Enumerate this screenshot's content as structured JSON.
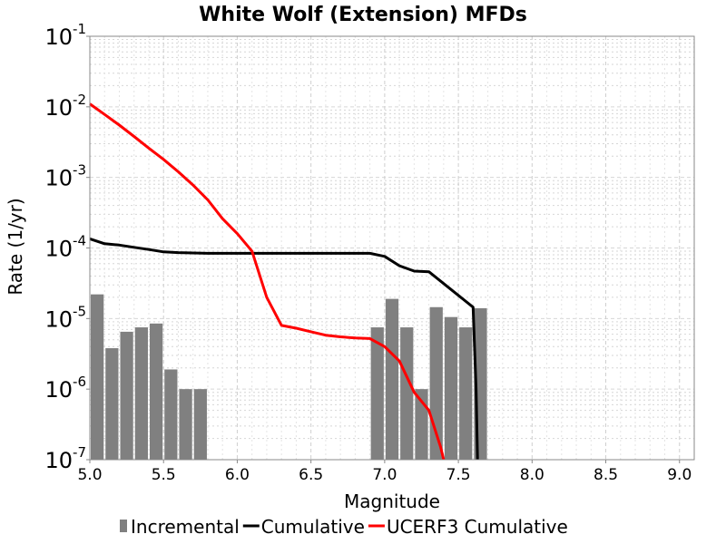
{
  "chart_data": {
    "type": "bar+line",
    "title": "White Wolf (Extension) MFDs",
    "xlabel": "Magnitude",
    "ylabel": "Rate (1/yr)",
    "xlim": [
      5.0,
      9.1
    ],
    "ylim": [
      1e-07,
      0.1
    ],
    "yscale": "log",
    "grid": true,
    "x_ticks": [
      "5.0",
      "5.5",
      "6.0",
      "6.5",
      "7.0",
      "7.5",
      "8.0",
      "8.5",
      "9.0"
    ],
    "y_ticks": [
      {
        "base": "10",
        "exp": "-1",
        "value": 0.1
      },
      {
        "base": "10",
        "exp": "-2",
        "value": 0.01
      },
      {
        "base": "10",
        "exp": "-3",
        "value": 0.001
      },
      {
        "base": "10",
        "exp": "-4",
        "value": 0.0001
      },
      {
        "base": "10",
        "exp": "-5",
        "value": 1e-05
      },
      {
        "base": "10",
        "exp": "-6",
        "value": 1e-06
      },
      {
        "base": "10",
        "exp": "-7",
        "value": 1e-07
      }
    ],
    "legend_position": "bottom",
    "series": [
      {
        "name": "Incremental",
        "type": "bar",
        "color": "#808080",
        "x": [
          5.05,
          5.15,
          5.25,
          5.35,
          5.45,
          5.55,
          5.65,
          5.75,
          6.95,
          7.05,
          7.15,
          7.25,
          7.35,
          7.45,
          7.55,
          7.65
        ],
        "y": [
          2.2e-05,
          3.8e-06,
          6.5e-06,
          7.5e-06,
          8.5e-06,
          1.9e-06,
          1e-06,
          1e-06,
          7.5e-06,
          1.9e-05,
          7.5e-06,
          1e-06,
          1.45e-05,
          1.05e-05,
          7.5e-06,
          1.4e-05
        ]
      },
      {
        "name": "Cumulative",
        "type": "line",
        "color": "#000000",
        "x": [
          5.0,
          5.1,
          5.2,
          5.3,
          5.4,
          5.5,
          5.6,
          5.7,
          5.8,
          5.9,
          6.0,
          6.5,
          6.9,
          7.0,
          7.1,
          7.2,
          7.3,
          7.6,
          7.62,
          7.63
        ],
        "y": [
          0.000135,
          0.000115,
          0.00011,
          0.000102,
          9.5e-05,
          8.8e-05,
          8.6e-05,
          8.5e-05,
          8.4e-05,
          8.4e-05,
          8.4e-05,
          8.4e-05,
          8.4e-05,
          7.6e-05,
          5.6e-05,
          4.7e-05,
          4.6e-05,
          1.45e-05,
          1e-06,
          1e-07
        ]
      },
      {
        "name": "UCERF3 Cumulative",
        "type": "line",
        "color": "#ff0000",
        "x": [
          5.0,
          5.1,
          5.2,
          5.3,
          5.4,
          5.5,
          5.6,
          5.7,
          5.8,
          5.9,
          6.0,
          6.1,
          6.2,
          6.3,
          6.4,
          6.5,
          6.6,
          6.7,
          6.8,
          6.9,
          7.0,
          7.1,
          7.2,
          7.3,
          7.38,
          7.4
        ],
        "y": [
          0.011,
          0.0078,
          0.0055,
          0.0038,
          0.0026,
          0.0018,
          0.0012,
          0.00078,
          0.00048,
          0.00026,
          0.00016,
          9e-05,
          2e-05,
          8e-06,
          7.3e-06,
          6.5e-06,
          5.8e-06,
          5.5e-06,
          5.3e-06,
          5.2e-06,
          4e-06,
          2.5e-06,
          9e-07,
          5e-07,
          1.5e-07,
          1e-07
        ]
      }
    ]
  }
}
